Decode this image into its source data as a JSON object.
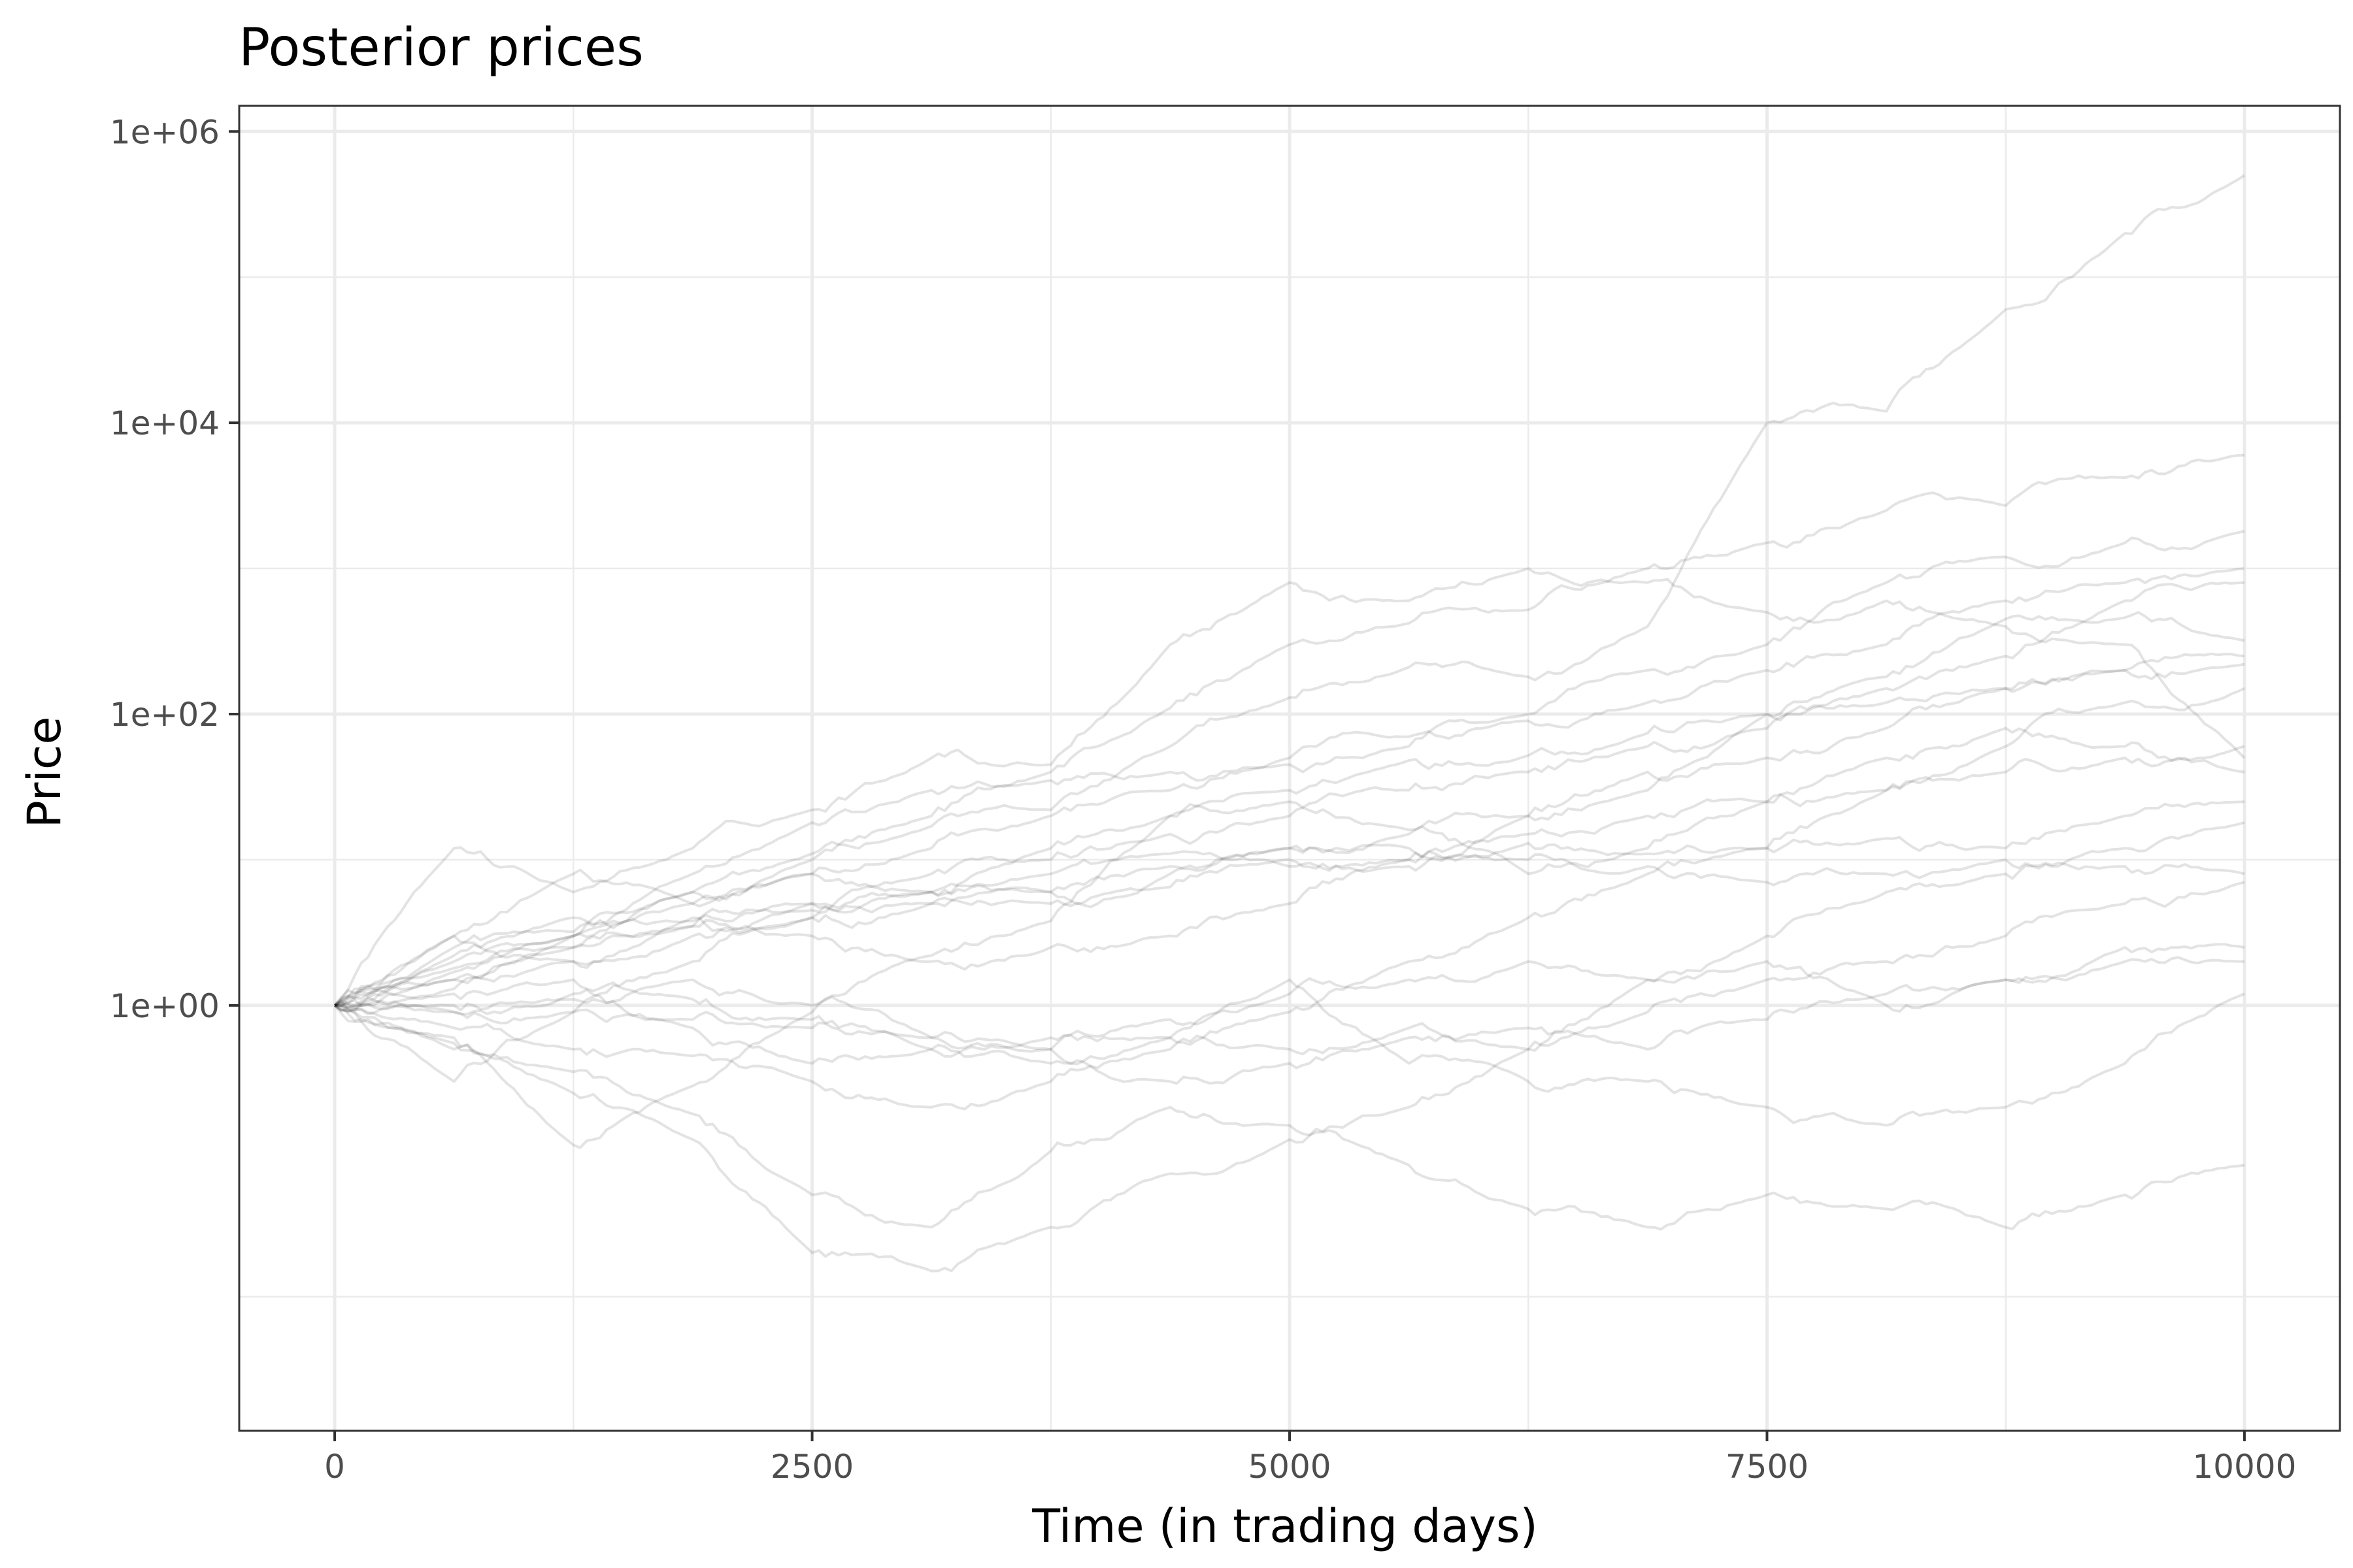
{
  "chart_data": {
    "type": "line",
    "title": "Posterior prices",
    "xlabel": "Time (in trading days)",
    "ylabel": "Price",
    "y_scale": "log10",
    "xlim": [
      -500,
      10500
    ],
    "ylim": [
      0.0012,
      1500000
    ],
    "x_ticks": [
      0,
      2500,
      5000,
      7500,
      10000
    ],
    "x_tick_labels": [
      "0",
      "2500",
      "5000",
      "7500",
      "10000"
    ],
    "y_ticks": [
      1,
      100,
      10000,
      1000000
    ],
    "y_tick_labels": [
      "1e+00",
      "1e+02",
      "1e+04",
      "1e+06"
    ],
    "grid": true,
    "legend": "none",
    "line_color": "#000000",
    "line_alpha": 0.11,
    "series": [
      {
        "x": [
          0,
          625,
          1250,
          1875,
          2500,
          3125,
          3750,
          4375,
          5000,
          5625,
          6250,
          6875,
          7500,
          8125,
          8750,
          9375,
          10000
        ],
        "values": [
          1,
          0.55,
          0.11,
          0.28,
          0.9,
          2.2,
          3.8,
          20,
          30,
          48,
          52,
          74,
          100,
          180,
          450,
          460,
          320
        ]
      },
      {
        "x": [
          0,
          625,
          1250,
          1875,
          2500,
          3125,
          3750,
          4375,
          5000,
          5625,
          6250,
          6875,
          7500,
          8125,
          8750,
          9375,
          10000
        ],
        "values": [
          1,
          1.7,
          3,
          6,
          11,
          20,
          40,
          110,
          300,
          420,
          520,
          1000,
          1500,
          2500,
          2700,
          4200,
          6000
        ]
      },
      {
        "x": [
          0,
          625,
          1250,
          1875,
          2500,
          3125,
          3750,
          4375,
          5000,
          5625,
          6250,
          6875,
          7500,
          8125,
          8750,
          9375,
          10000
        ],
        "values": [
          1,
          3,
          8,
          5,
          10,
          17,
          22,
          60,
          130,
          210,
          180,
          400,
          10000,
          12000,
          60000,
          200000,
          500000
        ]
      },
      {
        "x": [
          0,
          625,
          1250,
          1875,
          2500,
          3125,
          3750,
          4375,
          5000,
          5625,
          6250,
          6875,
          7500,
          8125,
          8750,
          9375,
          10000
        ],
        "values": [
          1,
          12,
          6,
          12,
          22,
          50,
          45,
          300,
          800,
          600,
          1000,
          800,
          500,
          600,
          400,
          300,
          50
        ]
      },
      {
        "x": [
          0,
          625,
          1250,
          1875,
          2500,
          3125,
          3750,
          4375,
          5000,
          5625,
          6250,
          6875,
          7500,
          8125,
          8750,
          9375,
          10000
        ],
        "values": [
          1,
          2.5,
          3.2,
          3.8,
          4.5,
          6,
          8,
          11,
          9,
          10,
          13,
          11,
          12,
          14,
          12,
          20,
          25
        ]
      },
      {
        "x": [
          0,
          625,
          1250,
          1875,
          2500,
          3125,
          3750,
          4375,
          5000,
          5625,
          6250,
          6875,
          7500,
          8125,
          8750,
          9375,
          10000
        ],
        "values": [
          1,
          0.3,
          0.9,
          2,
          4,
          6,
          12,
          20,
          25,
          16,
          8,
          12,
          25,
          50,
          80,
          60,
          40
        ]
      },
      {
        "x": [
          0,
          625,
          1250,
          1875,
          2500,
          3125,
          3750,
          4375,
          5000,
          5625,
          6250,
          6875,
          7500,
          8125,
          8750,
          9375,
          10000
        ],
        "values": [
          1,
          0.9,
          1.2,
          0.7,
          0.4,
          0.5,
          0.6,
          0.6,
          1.5,
          0.4,
          0.3,
          0.3,
          0.2,
          0.15,
          0.2,
          0.4,
          1.2
        ]
      },
      {
        "x": [
          0,
          625,
          1250,
          1875,
          2500,
          3125,
          3750,
          4375,
          5000,
          5625,
          6250,
          6875,
          7500,
          8125,
          8750,
          9375,
          10000
        ],
        "values": [
          1,
          0.5,
          0.35,
          0.18,
          0.05,
          0.03,
          0.1,
          0.2,
          0.15,
          0.08,
          0.04,
          0.03,
          0.05,
          0.04,
          0.03,
          0.05,
          0.08
        ]
      },
      {
        "x": [
          0,
          625,
          1250,
          1875,
          2500,
          3125,
          3750,
          4375,
          5000,
          5625,
          6250,
          6875,
          7500,
          8125,
          8750,
          9375,
          10000
        ],
        "values": [
          1,
          0.6,
          0.25,
          0.12,
          0.02,
          0.015,
          0.03,
          0.07,
          0.12,
          0.2,
          0.5,
          1.5,
          3,
          6,
          8,
          12,
          18
        ]
      },
      {
        "x": [
          0,
          625,
          1250,
          1875,
          2500,
          3125,
          3750,
          4375,
          5000,
          5625,
          6250,
          6875,
          7500,
          8125,
          8750,
          9375,
          10000
        ],
        "values": [
          1,
          3,
          2,
          4,
          3,
          2,
          2.5,
          3,
          5,
          10,
          20,
          30,
          100,
          150,
          250,
          600,
          800
        ]
      },
      {
        "x": [
          0,
          625,
          1250,
          1875,
          2500,
          3125,
          3750,
          4375,
          5000,
          5625,
          6250,
          6875,
          7500,
          8125,
          8750,
          9375,
          10000
        ],
        "values": [
          1,
          1.2,
          1.5,
          1.1,
          0.8,
          0.5,
          0.4,
          0.6,
          0.5,
          0.7,
          0.5,
          0.9,
          1.5,
          2,
          3,
          5,
          7
        ]
      },
      {
        "x": [
          0,
          625,
          1250,
          1875,
          2500,
          3125,
          3750,
          4375,
          5000,
          5625,
          6250,
          6875,
          7500,
          8125,
          8750,
          9375,
          10000
        ],
        "values": [
          1,
          0.9,
          0.9,
          0.8,
          0.7,
          0.6,
          0.5,
          0.3,
          0.4,
          0.6,
          0.7,
          0.5,
          0.8,
          1.2,
          1.5,
          2.5,
          2.5
        ]
      },
      {
        "x": [
          0,
          625,
          1250,
          1875,
          2500,
          3125,
          3750,
          4375,
          5000,
          5625,
          6250,
          6875,
          7500,
          8125,
          8750,
          9375,
          10000
        ],
        "values": [
          1,
          1.5,
          3,
          8,
          18,
          30,
          35,
          40,
          45,
          60,
          100,
          200,
          300,
          800,
          1200,
          1500,
          1800
        ]
      },
      {
        "x": [
          0,
          625,
          1250,
          1875,
          2500,
          3125,
          3750,
          4375,
          5000,
          5625,
          6250,
          6875,
          7500,
          8125,
          8750,
          9375,
          10000
        ],
        "values": [
          1,
          1.8,
          2.5,
          3.5,
          5,
          5,
          5,
          8,
          12,
          15,
          20,
          40,
          50,
          80,
          150,
          200,
          250
        ]
      },
      {
        "x": [
          0,
          625,
          1250,
          1875,
          2500,
          3125,
          3750,
          4375,
          5000,
          5625,
          6250,
          6875,
          7500,
          8125,
          8750,
          9375,
          10000
        ],
        "values": [
          1,
          1,
          1.1,
          1.5,
          1,
          0.6,
          0.5,
          0.8,
          1.2,
          1.5,
          2,
          1.5,
          2,
          1,
          1.5,
          2,
          2
        ]
      },
      {
        "x": [
          0,
          625,
          1250,
          1875,
          2500,
          3125,
          3750,
          4375,
          5000,
          5625,
          6250,
          6875,
          7500,
          8125,
          8750,
          9375,
          10000
        ],
        "values": [
          1,
          2.2,
          4,
          6,
          8,
          12,
          20,
          30,
          50,
          70,
          90,
          120,
          200,
          300,
          600,
          800,
          1000
        ]
      },
      {
        "x": [
          0,
          625,
          1250,
          1875,
          2500,
          3125,
          3750,
          4375,
          5000,
          5625,
          6250,
          6875,
          7500,
          8125,
          8750,
          9375,
          10000
        ],
        "values": [
          1,
          0.7,
          0.5,
          0.45,
          0.3,
          0.2,
          0.3,
          0.5,
          0.9,
          2,
          4,
          8,
          12,
          30,
          60,
          120,
          150
        ]
      },
      {
        "x": [
          0,
          625,
          1250,
          1875,
          2500,
          3125,
          3750,
          4375,
          5000,
          5625,
          6250,
          6875,
          7500,
          8125,
          8750,
          9375,
          10000
        ],
        "values": [
          1,
          1.5,
          2.5,
          3.5,
          4,
          5,
          6,
          6.5,
          10,
          9,
          10,
          9,
          7,
          8,
          10,
          9,
          8
        ]
      },
      {
        "x": [
          0,
          625,
          1250,
          1875,
          2500,
          3125,
          3750,
          4375,
          5000,
          5625,
          6250,
          6875,
          7500,
          8125,
          8750,
          9375,
          10000
        ],
        "values": [
          1,
          2,
          3,
          5,
          8,
          6,
          6,
          9,
          12,
          12,
          15,
          20,
          25,
          30,
          40,
          50,
          60
        ]
      },
      {
        "x": [
          0,
          625,
          1250,
          1875,
          2500,
          3125,
          3750,
          4375,
          5000,
          5625,
          6250,
          6875,
          7500,
          8125,
          8750,
          9375,
          10000
        ],
        "values": [
          1,
          1.3,
          2,
          3,
          5,
          8,
          10,
          15,
          20,
          30,
          40,
          60,
          80,
          120,
          150,
          200,
          220
        ]
      }
    ]
  }
}
